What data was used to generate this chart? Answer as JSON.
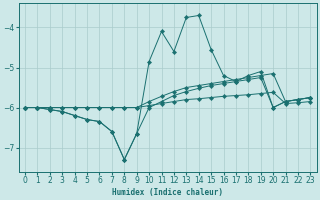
{
  "xlabel": "Humidex (Indice chaleur)",
  "bg_color": "#cde8e8",
  "grid_color": "#aacccc",
  "line_color": "#1a7070",
  "xlim": [
    -0.5,
    23.5
  ],
  "ylim": [
    -7.6,
    -3.4
  ],
  "yticks": [
    -7,
    -6,
    -5,
    -4
  ],
  "xticks": [
    0,
    1,
    2,
    3,
    4,
    5,
    6,
    7,
    8,
    9,
    10,
    11,
    12,
    13,
    14,
    15,
    16,
    17,
    18,
    19,
    20,
    21,
    22,
    23
  ],
  "series": [
    {
      "x": [
        0,
        1,
        2,
        3,
        4,
        5,
        6,
        7,
        8,
        9,
        10,
        11,
        12,
        13,
        14,
        15,
        16,
        17,
        18,
        19,
        20,
        21,
        22,
        23
      ],
      "y": [
        -6.0,
        -6.0,
        -6.0,
        -6.0,
        -6.0,
        -6.0,
        -6.0,
        -6.0,
        -6.0,
        -6.0,
        -5.95,
        -5.9,
        -5.85,
        -5.8,
        -5.78,
        -5.75,
        -5.72,
        -5.7,
        -5.68,
        -5.65,
        -5.62,
        -5.9,
        -5.88,
        -5.85
      ]
    },
    {
      "x": [
        0,
        1,
        2,
        3,
        4,
        5,
        6,
        7,
        8,
        9,
        10,
        11,
        12,
        13,
        14,
        15,
        16,
        17,
        18,
        19,
        20,
        21,
        22,
        23
      ],
      "y": [
        -6.0,
        -6.0,
        -6.0,
        -6.0,
        -6.0,
        -6.0,
        -6.0,
        -6.0,
        -6.0,
        -6.0,
        -5.85,
        -5.72,
        -5.6,
        -5.5,
        -5.45,
        -5.4,
        -5.35,
        -5.3,
        -5.25,
        -5.2,
        -5.15,
        -5.85,
        -5.8,
        -5.75
      ]
    },
    {
      "x": [
        0,
        1,
        2,
        3,
        4,
        5,
        6,
        7,
        8,
        9,
        10,
        11,
        12,
        13,
        14,
        15,
        16,
        17,
        18,
        19,
        20,
        21,
        22,
        23
      ],
      "y": [
        -6.0,
        -6.0,
        -6.05,
        -6.1,
        -6.2,
        -6.3,
        -6.35,
        -6.6,
        -7.3,
        -6.65,
        -6.0,
        -5.85,
        -5.7,
        -5.6,
        -5.52,
        -5.45,
        -5.4,
        -5.35,
        -5.3,
        -5.25,
        -6.0,
        -5.85,
        -5.8,
        -5.75
      ]
    },
    {
      "x": [
        0,
        1,
        2,
        3,
        4,
        5,
        6,
        7,
        8,
        9,
        10,
        11,
        12,
        13,
        14,
        15,
        16,
        17,
        18,
        19,
        20,
        21,
        22,
        23
      ],
      "y": [
        -6.0,
        -6.0,
        -6.05,
        -6.1,
        -6.2,
        -6.3,
        -6.35,
        -6.6,
        -7.3,
        -6.65,
        -4.85,
        -4.1,
        -4.6,
        -3.75,
        -3.7,
        -4.55,
        -5.2,
        -5.35,
        -5.2,
        -5.1,
        -6.0,
        -5.85,
        -5.8,
        -5.75
      ]
    }
  ]
}
